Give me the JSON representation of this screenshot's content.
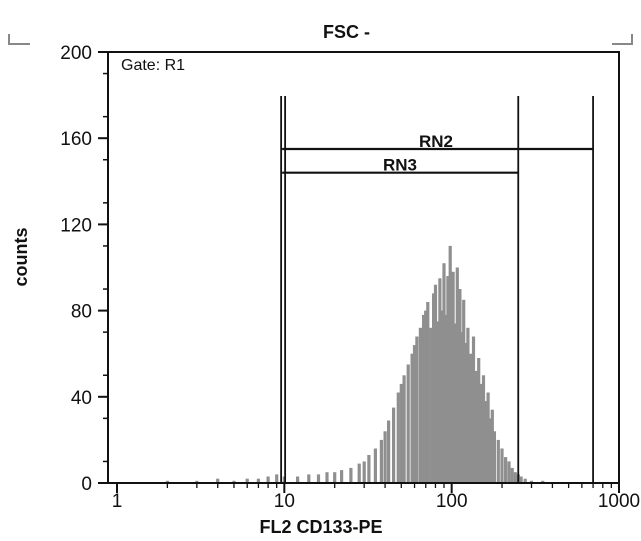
{
  "chart_data": {
    "type": "bar",
    "title": "FSC -",
    "gate_label": "Gate: R1",
    "xlabel": "FL2  CD133-PE",
    "ylabel": "counts",
    "x_scale": "log",
    "xlim": [
      1,
      1000
    ],
    "ylim": [
      0,
      200
    ],
    "x_ticks": [
      {
        "value": 1,
        "label": "1"
      },
      {
        "value": 10,
        "label": "10"
      },
      {
        "value": 100,
        "label": "100"
      },
      {
        "value": 1000,
        "label": "1000"
      }
    ],
    "y_ticks": [
      {
        "value": 0,
        "label": "0"
      },
      {
        "value": 40,
        "label": "40"
      },
      {
        "value": 80,
        "label": "80"
      },
      {
        "value": 120,
        "label": "120"
      },
      {
        "value": 160,
        "label": "160"
      },
      {
        "value": 200,
        "label": "200"
      }
    ],
    "markers": [
      {
        "name": "RN2",
        "range": [
          9.7,
          700
        ],
        "y": 155
      },
      {
        "name": "RN3",
        "range": [
          9.7,
          250
        ],
        "y": 144
      }
    ],
    "histogram": {
      "color": "#8f8f8f",
      "x": [
        2.0,
        3.0,
        4.0,
        5.0,
        6.0,
        7.0,
        8.0,
        9.0,
        10,
        12,
        14,
        16,
        18,
        20,
        22,
        25,
        28,
        30,
        32,
        35,
        38,
        40,
        42,
        45,
        48,
        50,
        52,
        55,
        58,
        60,
        62,
        65,
        68,
        70,
        72,
        75,
        78,
        80,
        82,
        85,
        88,
        90,
        92,
        95,
        98,
        100,
        102,
        105,
        108,
        110,
        112,
        115,
        118,
        120,
        125,
        130,
        135,
        140,
        145,
        150,
        155,
        160,
        165,
        170,
        175,
        180,
        190,
        200,
        210,
        220,
        230,
        240,
        250,
        260,
        275,
        300,
        350
      ],
      "counts": [
        1,
        1,
        2,
        1,
        2,
        2,
        3,
        4,
        3,
        3,
        4,
        4,
        5,
        5,
        6,
        7,
        9,
        10,
        13,
        16,
        20,
        24,
        29,
        35,
        42,
        46,
        50,
        55,
        60,
        64,
        68,
        72,
        78,
        80,
        84,
        72,
        88,
        92,
        75,
        95,
        80,
        102,
        78,
        96,
        110,
        85,
        98,
        74,
        100,
        82,
        90,
        70,
        85,
        65,
        72,
        60,
        68,
        52,
        58,
        46,
        50,
        38,
        42,
        30,
        34,
        24,
        20,
        16,
        12,
        10,
        7,
        5,
        4,
        3,
        2,
        1,
        1
      ]
    }
  }
}
